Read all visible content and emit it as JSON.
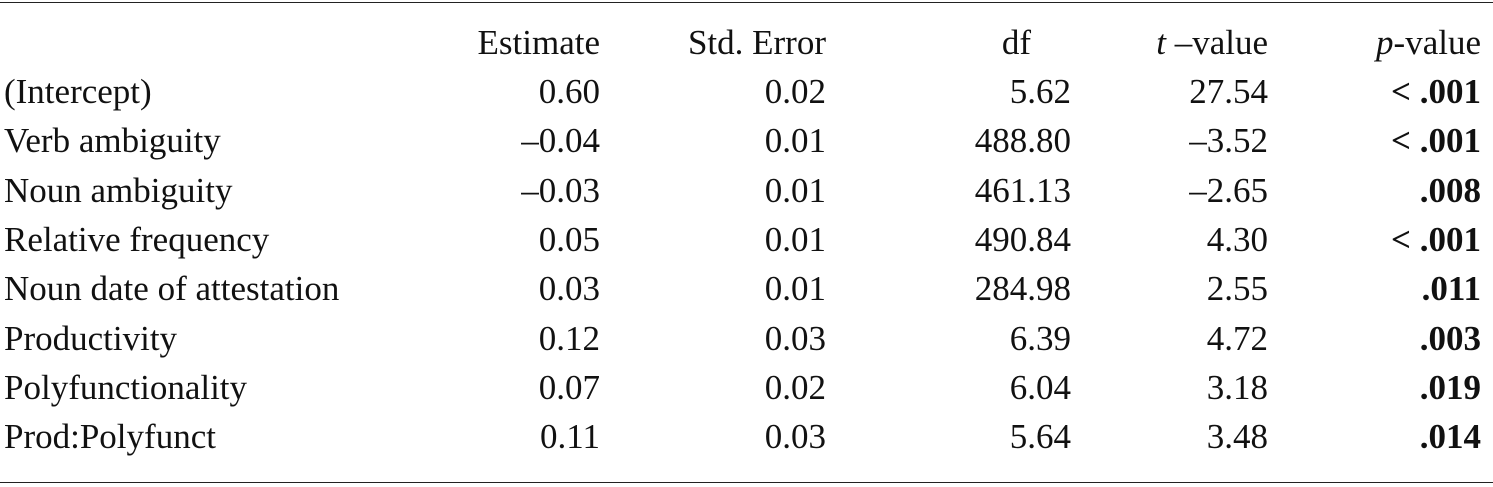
{
  "table": {
    "columns": [
      "",
      "Estimate",
      "Std. Error",
      "df",
      "–value",
      "-value"
    ],
    "column_italic_prefix": {
      "t": "t",
      "p": "p"
    },
    "header": {
      "estimate": "Estimate",
      "std_error": "Std. Error",
      "df": "df",
      "t_prefix": "t",
      "t_suffix": " –value",
      "p_prefix": "p",
      "p_suffix": "-value"
    },
    "rows": [
      {
        "term": "(Intercept)",
        "estimate": "0.60",
        "std_error": "0.02",
        "df": "5.62",
        "t_value": "27.54",
        "p_value": "< .001"
      },
      {
        "term": "Verb ambiguity",
        "estimate": "–0.04",
        "std_error": "0.01",
        "df": "488.80",
        "t_value": "–3.52",
        "p_value": "< .001"
      },
      {
        "term": "Noun ambiguity",
        "estimate": "–0.03",
        "std_error": "0.01",
        "df": "461.13",
        "t_value": "–2.65",
        "p_value": ".008"
      },
      {
        "term": "Relative frequency",
        "estimate": "0.05",
        "std_error": "0.01",
        "df": "490.84",
        "t_value": "4.30",
        "p_value": "< .001"
      },
      {
        "term": "Noun date of attestation",
        "estimate": "0.03",
        "std_error": "0.01",
        "df": "284.98",
        "t_value": "2.55",
        "p_value": ".011"
      },
      {
        "term": "Productivity",
        "estimate": "0.12",
        "std_error": "0.03",
        "df": "6.39",
        "t_value": "4.72",
        "p_value": ".003"
      },
      {
        "term": "Polyfunctionality",
        "estimate": "0.07",
        "std_error": "0.02",
        "df": "6.04",
        "t_value": "3.18",
        "p_value": ".019"
      },
      {
        "term": "Prod:Polyfunct",
        "estimate": "0.11",
        "std_error": "0.03",
        "df": "5.64",
        "t_value": "3.48",
        "p_value": ".014"
      }
    ]
  }
}
